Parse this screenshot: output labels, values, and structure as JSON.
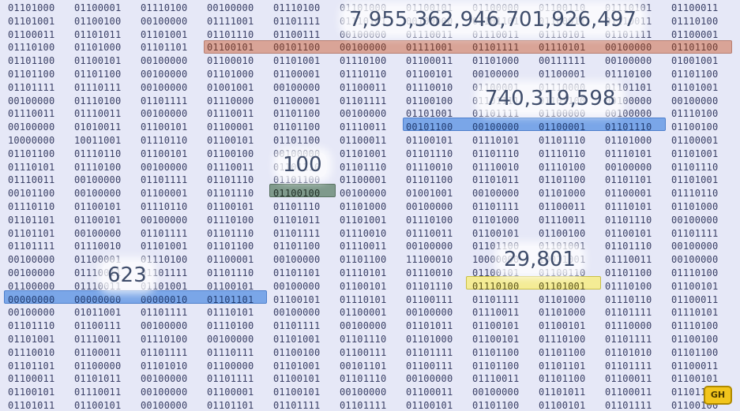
{
  "numbers": {
    "n1": "7,955,362,946,701,926,497",
    "n2": "740,319,598",
    "n3": "100",
    "n4": "29,801",
    "n5": "623"
  },
  "grid": {
    "rows": [
      [
        "01101000",
        "01100001",
        "01110100",
        "00100000",
        "01110100",
        "01101000",
        "01100101",
        "01100000",
        "01100110",
        "01110101",
        "01100011"
      ],
      [
        "01101001",
        "01100100",
        "00100000",
        "01111001",
        "01101111",
        "01110101",
        "00100000",
        "01101101",
        "01100011",
        "01110011",
        "01110100"
      ],
      [
        "01100011",
        "01101011",
        "01101001",
        "01101110",
        "01100111",
        "00100000",
        "01110011",
        "01110011",
        "01110101",
        "01101111",
        "01100001"
      ],
      [
        "01110100",
        "01101000",
        "01101101",
        "01100101",
        "00101100",
        "00100000",
        "01111001",
        "01101111",
        "01110101",
        "00100000",
        "01101100"
      ],
      [
        "01101100",
        "01100101",
        "00100000",
        "01100010",
        "01101001",
        "01110100",
        "01100011",
        "01101000",
        "00111111",
        "00100000",
        "01001001"
      ],
      [
        "01101100",
        "01101100",
        "00100000",
        "01101000",
        "01100001",
        "01110110",
        "01100101",
        "00100000",
        "01100001",
        "01110100",
        "01101100"
      ],
      [
        "01101111",
        "01110111",
        "00100000",
        "01001001",
        "00100000",
        "01100011",
        "01110010",
        "01100001",
        "01110000",
        "01101101",
        "01101001"
      ],
      [
        "00100000",
        "01110100",
        "01101111",
        "01110000",
        "01100001",
        "01101111",
        "01100100",
        "01101111",
        "01101100",
        "00100000",
        "00100000"
      ],
      [
        "01110011",
        "01110011",
        "00100000",
        "01110011",
        "01101100",
        "00100000",
        "01101001",
        "01101111",
        "01100000",
        "00100000",
        "01110100"
      ],
      [
        "00100000",
        "01010011",
        "01100101",
        "01100001",
        "01101100",
        "01110011",
        "00101100",
        "00100000",
        "01100001",
        "01101110",
        "01100100"
      ],
      [
        "10000000",
        "10011001",
        "01110110",
        "01100101",
        "01101100",
        "01100011",
        "01100101",
        "01110101",
        "01101110",
        "01101000",
        "01100001"
      ],
      [
        "01101100",
        "01110110",
        "01100101",
        "01100100",
        "00100000",
        "01101001",
        "01101110",
        "01101110",
        "01110110",
        "01110101",
        "01101001"
      ],
      [
        "01110101",
        "01110100",
        "00100000",
        "01110011",
        "01101110",
        "01101110",
        "01110010",
        "01110010",
        "01110100",
        "00100000",
        "01101110"
      ],
      [
        "01110011",
        "00100000",
        "01101111",
        "01101110",
        "01101100",
        "01100001",
        "01101100",
        "01101011",
        "01101100",
        "01101101",
        "01101001"
      ],
      [
        "00101100",
        "00100000",
        "01100001",
        "01101110",
        "01100100",
        "00100000",
        "01001001",
        "00100000",
        "01101000",
        "01100001",
        "01110110"
      ],
      [
        "01110110",
        "01100101",
        "01110110",
        "01100101",
        "01101110",
        "01101000",
        "00100000",
        "01101111",
        "01100011",
        "01110101",
        "01101000"
      ],
      [
        "01101101",
        "01100101",
        "00100000",
        "01110100",
        "01101011",
        "01101001",
        "01110100",
        "01101000",
        "01110011",
        "01101110",
        "00100000"
      ],
      [
        "01101101",
        "00100000",
        "01101111",
        "01101110",
        "01101111",
        "01110010",
        "01110011",
        "01100101",
        "01100100",
        "01100101",
        "01101111"
      ],
      [
        "01101111",
        "01110010",
        "01101001",
        "01101100",
        "01101100",
        "01110011",
        "00100000",
        "01101100",
        "01101001",
        "01101110",
        "00100000"
      ],
      [
        "00100000",
        "01100001",
        "01110100",
        "01100001",
        "00100000",
        "01101100",
        "11100010",
        "10000000",
        "10011001",
        "01110011",
        "00100000"
      ],
      [
        "00100000",
        "01110011",
        "01101111",
        "01101110",
        "01101101",
        "01110101",
        "01110010",
        "01100101",
        "01100110",
        "01101100",
        "01110100"
      ],
      [
        "01100000",
        "01110011",
        "01101001",
        "01100101",
        "00100000",
        "01100101",
        "01101110",
        "01101110",
        "01101001",
        "01110100",
        "01100101"
      ],
      [
        "00000000",
        "00000000",
        "00000010",
        "01101101",
        "01100101",
        "01110101",
        "01100111",
        "01101111",
        "01101000",
        "01110110",
        "01100011"
      ],
      [
        "00100000",
        "01011001",
        "01101111",
        "01110101",
        "00100000",
        "01100001",
        "00100000",
        "01110011",
        "01101000",
        "01101111",
        "01110101"
      ],
      [
        "01101110",
        "01100111",
        "00100000",
        "01110100",
        "01101111",
        "00100000",
        "01101011",
        "01100101",
        "01100101",
        "01110000",
        "01110100"
      ],
      [
        "01101001",
        "01110011",
        "01110100",
        "00100000",
        "01101001",
        "01101110",
        "01101000",
        "01100101",
        "01110100",
        "01101111",
        "01100100"
      ],
      [
        "01110010",
        "01100011",
        "01101111",
        "01110111",
        "01100100",
        "01100111",
        "01101111",
        "01101100",
        "01101100",
        "01101010",
        "01101100"
      ],
      [
        "01101101",
        "01100000",
        "01101010",
        "01100000",
        "01101001",
        "00101101",
        "01100111",
        "01101100",
        "01101101",
        "01101111",
        "01100011"
      ],
      [
        "01100011",
        "01101011",
        "00100000",
        "01101111",
        "01100101",
        "01101110",
        "00100000",
        "01110011",
        "01101100",
        "01100011",
        "01100101"
      ],
      [
        "01100101",
        "01110011",
        "00100000",
        "01100001",
        "01100101",
        "00100000",
        "01100011",
        "00100000",
        "01101011",
        "01100011",
        "01101111"
      ],
      [
        "01101011",
        "01100101",
        "00100000",
        "01101101",
        "01101111",
        "01101111",
        "01100101",
        "01101100",
        "01100101",
        "01101111",
        "01100100"
      ]
    ]
  },
  "highlights": {
    "colors": {
      "salmon": "#d9a497",
      "blue": "#7aa6e8",
      "green": "#7f9a8c",
      "yellow": "#f4ec95"
    },
    "salmon_bytes": [
      "01100101",
      "00101100",
      "00100000",
      "01111001",
      "01101111",
      "01110101",
      "00100000",
      "01101100"
    ],
    "blue_top_bytes": [
      "00101100",
      "00100000",
      "01100001",
      "01101110"
    ],
    "green_bytes": [
      "01100100"
    ],
    "yellow_bytes": [
      "01110100",
      "01101001"
    ],
    "blue_bottom_bytes": [
      "00000000",
      "00000000",
      "00000010",
      "01101101"
    ]
  },
  "logo_text": "GH"
}
